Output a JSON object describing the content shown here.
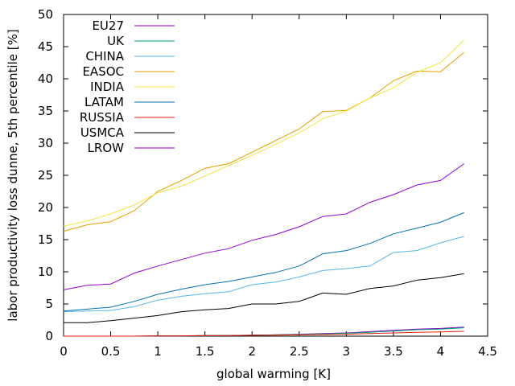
{
  "chart_data": {
    "type": "line",
    "title": "",
    "xlabel": "global warming [K]",
    "ylabel": "labor productivity loss dunne, 5th percentile [%]",
    "xlim": [
      0,
      4.5
    ],
    "ylim": [
      0,
      50
    ],
    "xticks": [
      "0",
      "0.5",
      "1",
      "1.5",
      "2",
      "2.5",
      "3",
      "3.5",
      "4",
      "4.5"
    ],
    "yticks": [
      "0",
      "5",
      "10",
      "15",
      "20",
      "25",
      "30",
      "35",
      "40",
      "45",
      "50"
    ],
    "grid": false,
    "legend_position": "top-left",
    "x": [
      0,
      0.25,
      0.5,
      0.75,
      1.0,
      1.25,
      1.5,
      1.75,
      2.0,
      2.25,
      2.5,
      2.75,
      3.0,
      3.25,
      3.5,
      3.75,
      4.0,
      4.25
    ],
    "series": [
      {
        "name": "EU27",
        "color": "#9400d3",
        "values": [
          0.0,
          0.0,
          0.0,
          0.0,
          0.05,
          0.05,
          0.1,
          0.1,
          0.15,
          0.2,
          0.3,
          0.4,
          0.5,
          0.7,
          0.9,
          1.1,
          1.2,
          1.4
        ]
      },
      {
        "name": "UK",
        "color": "#009e73",
        "values": [
          0.0,
          0.0,
          0.0,
          0.0,
          0.05,
          0.05,
          0.1,
          0.1,
          0.15,
          0.2,
          0.25,
          0.35,
          0.45,
          0.6,
          0.8,
          1.0,
          1.1,
          1.3
        ]
      },
      {
        "name": "CHINA",
        "color": "#56b4e9",
        "values": [
          3.8,
          3.9,
          4.0,
          4.6,
          5.6,
          6.2,
          6.6,
          6.9,
          8.0,
          8.4,
          9.2,
          10.2,
          10.5,
          10.9,
          13.0,
          13.3,
          14.5,
          15.5
        ]
      },
      {
        "name": "EASOC",
        "color": "#e69f00",
        "values": [
          16.3,
          17.3,
          17.8,
          19.5,
          22.5,
          24.2,
          26.1,
          26.8,
          28.6,
          30.4,
          32.2,
          34.9,
          35.1,
          37.0,
          39.7,
          41.2,
          41.1,
          44.1
        ]
      },
      {
        "name": "INDIA",
        "color": "#f0e442",
        "values": [
          17.1,
          17.9,
          19.0,
          20.4,
          22.3,
          23.3,
          24.9,
          26.5,
          28.1,
          29.8,
          31.6,
          33.8,
          35.0,
          37.0,
          38.6,
          41.0,
          42.5,
          46.0
        ]
      },
      {
        "name": "LATAM",
        "color": "#0072b2",
        "values": [
          3.9,
          4.2,
          4.5,
          5.4,
          6.5,
          7.3,
          8.0,
          8.5,
          9.2,
          9.9,
          10.9,
          12.8,
          13.3,
          14.4,
          15.9,
          16.8,
          17.7,
          19.2
        ]
      },
      {
        "name": "RUSSIA",
        "color": "#e51e10",
        "values": [
          0.0,
          0.0,
          0.0,
          0.0,
          0.05,
          0.05,
          0.08,
          0.1,
          0.12,
          0.15,
          0.2,
          0.25,
          0.3,
          0.4,
          0.5,
          0.6,
          0.65,
          0.75
        ]
      },
      {
        "name": "USMCA",
        "color": "#000000",
        "values": [
          2.1,
          2.1,
          2.4,
          2.8,
          3.2,
          3.8,
          4.1,
          4.3,
          5.0,
          5.0,
          5.4,
          6.7,
          6.5,
          7.4,
          7.8,
          8.7,
          9.1,
          9.7
        ]
      },
      {
        "name": "LROW",
        "color": "#9400d3",
        "values": [
          7.2,
          7.9,
          8.1,
          9.8,
          10.9,
          11.9,
          12.9,
          13.6,
          14.9,
          15.8,
          17.0,
          18.6,
          19.0,
          20.8,
          22.0,
          23.5,
          24.2,
          26.8
        ]
      }
    ]
  }
}
